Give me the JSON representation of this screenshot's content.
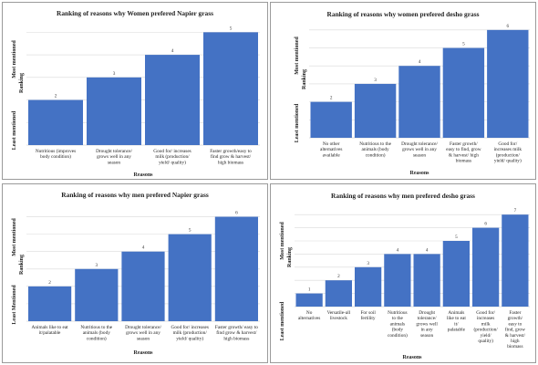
{
  "colors": {
    "bar": "#4472c4",
    "grid": "#d9d9d9",
    "border": "#9a9a9a"
  },
  "chart_data": [
    {
      "type": "bar",
      "title": "Ranking of reasons why Women prefered Napier grass",
      "xlabel": "Reasons",
      "ylabel": "Ranking",
      "ylabel_low": "Least mentioned",
      "ylabel_high": "Most mentioned",
      "categories": [
        "Nutritious (improves body condition)",
        "Drought tolerance/ grows well in any season",
        "Good for/ increases milk (production/ yield/ quality)",
        "Faster growth/easy to find grow & harvest/ high biomass"
      ],
      "values": [
        2,
        3,
        4,
        5
      ],
      "ylim": [
        0,
        5.5
      ],
      "grid": true,
      "legend": "none"
    },
    {
      "type": "bar",
      "title": "Ranking of reasons why women prefered desho grass",
      "xlabel": "Reasons",
      "ylabel": "Ranking",
      "ylabel_low": "Least mentioned",
      "ylabel_high": "Most mentioned",
      "categories": [
        "No other alternatives available",
        "Nutritious to the animals (body condition)",
        "Drought tolerance/ grows well in any season",
        "Faster growth/ easy to find, grow & harvest/ high biomass",
        "Good for/ increases milk (production/ yield/ quality)"
      ],
      "values": [
        2,
        3,
        4,
        5,
        6
      ],
      "ylim": [
        0,
        6.5
      ],
      "grid": true,
      "legend": "none"
    },
    {
      "type": "bar",
      "title": "Ranking of reasons why men prefered Napier grass",
      "xlabel": "Reasons",
      "ylabel": "Ranking",
      "ylabel_low": "Least Mentioned",
      "ylabel_high": "Most mentioned",
      "categories": [
        "Animals like to eat it/palatable",
        "Nutritious to the animals (body condition)",
        "Drought tolerance/ grows well in any season",
        "Good for/ increases milk (production/ yield/ quality)",
        "Faster growth/ easy to find grow & harvest/ high biomass"
      ],
      "values": [
        2,
        3,
        4,
        5,
        6
      ],
      "ylim": [
        0,
        6.5
      ],
      "grid": true,
      "legend": "none"
    },
    {
      "type": "bar",
      "title": "Ranking of reasons why men prefered desho grass",
      "xlabel": "Reasons",
      "ylabel": "Ranking",
      "ylabel_low": "Least mentioned",
      "ylabel_high": "Most mentioned",
      "categories": [
        "No alternatives",
        "Versatile-all livestock",
        "For soil fertility",
        "Nutritious to the animals (body condition)",
        "Drought tolerance/ grows well in any season",
        "Animals like to eat it/ palatable",
        "Good for/ increases milk (production/ yield/ quality)",
        "Faster growth/ easy to find, grow & harvest/ high biomass"
      ],
      "values": [
        1,
        2,
        3,
        4,
        4,
        5,
        6,
        7
      ],
      "ylim": [
        0,
        7.5
      ],
      "grid": true,
      "legend": "none"
    }
  ]
}
